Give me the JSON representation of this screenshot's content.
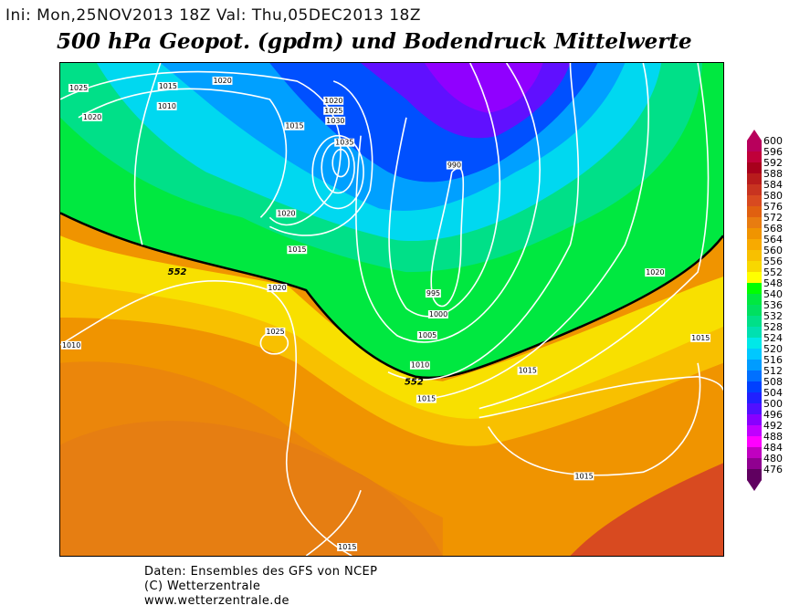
{
  "header": {
    "init_label": "Ini: Mon,25NOV2013 18Z",
    "valid_label": "Val: Thu,05DEC2013 18Z",
    "title": "500 hPa Geopot. (gpdm) und Bodendruck Mittelwerte"
  },
  "map": {
    "variable": "500 hPa geopotential (gpdm) and mean surface pressure (hPa)",
    "region": "North Atlantic / Europe",
    "highlighted_contour_labels": [
      "552",
      "552"
    ],
    "isobar_labels": [
      "1025",
      "1020",
      "1015",
      "1020",
      "1010",
      "1020",
      "1025",
      "1030",
      "1035",
      "1015",
      "1020",
      "1015",
      "990",
      "995",
      "1000",
      "1005",
      "1010",
      "1015",
      "1020",
      "1025",
      "1010",
      "1015",
      "1015",
      "1015",
      "1020",
      "1015"
    ]
  },
  "colorbar": {
    "labels": [
      "600",
      "596",
      "592",
      "588",
      "584",
      "580",
      "576",
      "572",
      "568",
      "564",
      "560",
      "556",
      "552",
      "548",
      "540",
      "536",
      "532",
      "528",
      "524",
      "520",
      "516",
      "512",
      "508",
      "504",
      "500",
      "496",
      "492",
      "488",
      "484",
      "480",
      "476"
    ],
    "colors": [
      "#b8005c",
      "#c0003a",
      "#a8001c",
      "#b81c1c",
      "#c83420",
      "#d84a20",
      "#e06010",
      "#e87c10",
      "#f09400",
      "#f8aa00",
      "#f8c000",
      "#f8d800",
      "#ffff00",
      "#00ff00",
      "#00e840",
      "#00e060",
      "#00e088",
      "#00e0b0",
      "#00e8e8",
      "#00c8ff",
      "#009cff",
      "#0070ff",
      "#0040ff",
      "#2020ff",
      "#5010ff",
      "#8800ff",
      "#c000ff",
      "#ff00ff",
      "#c000c0",
      "#900090",
      "#600060"
    ]
  },
  "footer": {
    "line1": "Daten: Ensembles des GFS von NCEP",
    "line2": "(C) Wetterzentrale",
    "line3": "www.wetterzentrale.de"
  }
}
